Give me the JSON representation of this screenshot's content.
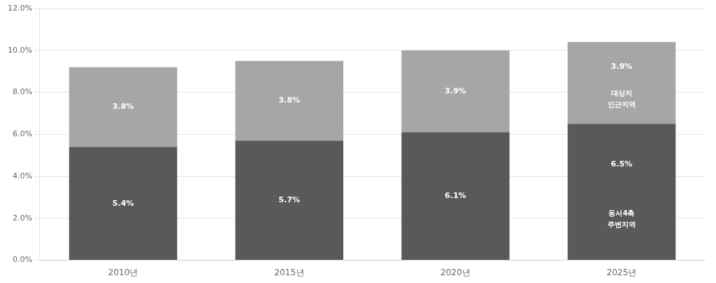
{
  "chart_data": {
    "type": "bar",
    "stacked": true,
    "categories": [
      "2010년",
      "2015년",
      "2020년",
      "2025년"
    ],
    "series": [
      {
        "color": "#595959",
        "values": [
          5.4,
          5.7,
          6.1,
          6.5
        ],
        "value_labels": [
          "5.4%",
          "5.7%",
          "6.1%",
          "6.5%"
        ],
        "annotations": [
          {
            "x": "2025년",
            "text": "동서4축\n주변지역"
          }
        ]
      },
      {
        "color": "#A6A6A6",
        "values": [
          3.8,
          3.8,
          3.9,
          3.9
        ],
        "value_labels": [
          "3.8%",
          "3.8%",
          "3.9%",
          "3.9%"
        ],
        "annotations": [
          {
            "x": "2025년",
            "text": "대상지\n인근지역"
          }
        ]
      }
    ],
    "ylim": [
      0,
      12.0
    ],
    "yticks": [
      {
        "value": 0.0,
        "label": "0.0%"
      },
      {
        "value": 2.0,
        "label": "2.0%"
      },
      {
        "value": 4.0,
        "label": "4.0%"
      },
      {
        "value": 6.0,
        "label": "6.0%"
      },
      {
        "value": 8.0,
        "label": "8.0%"
      },
      {
        "value": 10.0,
        "label": "10.0%"
      },
      {
        "value": 12.0,
        "label": "12.0%"
      }
    ],
    "grid": "y",
    "data_labels": true
  }
}
